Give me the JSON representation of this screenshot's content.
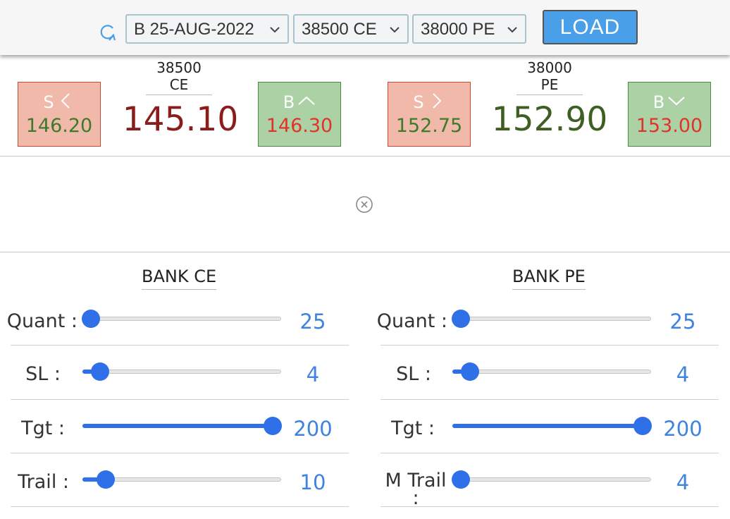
{
  "toolbar": {
    "expiry": "B 25-AUG-2022",
    "ce_strike": "38500 CE",
    "pe_strike": "38000 PE",
    "load_label": "LOAD"
  },
  "quotes": {
    "ce": {
      "label": "38500 CE",
      "sell_letter": "S",
      "sell_price": "146.20",
      "ltp": "145.10",
      "buy_letter": "B",
      "buy_price": "146.30"
    },
    "pe": {
      "label": "38000 PE",
      "sell_letter": "S",
      "sell_price": "152.75",
      "ltp": "152.90",
      "buy_letter": "B",
      "buy_price": "153.00"
    }
  },
  "panels": {
    "ce": {
      "title": "BANK CE",
      "rows": [
        {
          "label": "Quant :",
          "value": "25",
          "level": 0.0
        },
        {
          "label": "SL :",
          "value": "4",
          "level": 0.05
        },
        {
          "label": "Tgt :",
          "value": "200",
          "level": 1.0
        },
        {
          "label": "Trail :",
          "value": "10",
          "level": 0.08
        }
      ]
    },
    "pe": {
      "title": "BANK PE",
      "rows": [
        {
          "label": "Quant :",
          "value": "25",
          "level": 0.0
        },
        {
          "label": "SL :",
          "value": "4",
          "level": 0.05
        },
        {
          "label": "Tgt :",
          "value": "200",
          "level": 1.0
        },
        {
          "label": "M Trail :",
          "value": "4",
          "level": 0.0
        }
      ]
    }
  },
  "colors": {
    "accent": "#3f82e0",
    "ce_ltp": "#8b1c1c",
    "pe_ltp": "#3e5e22",
    "sell_price": "#3e7a2c",
    "buy_price": "#e0332a"
  },
  "icons": {
    "refresh": "refresh-icon",
    "close": "close-icon",
    "chevron": "chevron-down-icon"
  }
}
